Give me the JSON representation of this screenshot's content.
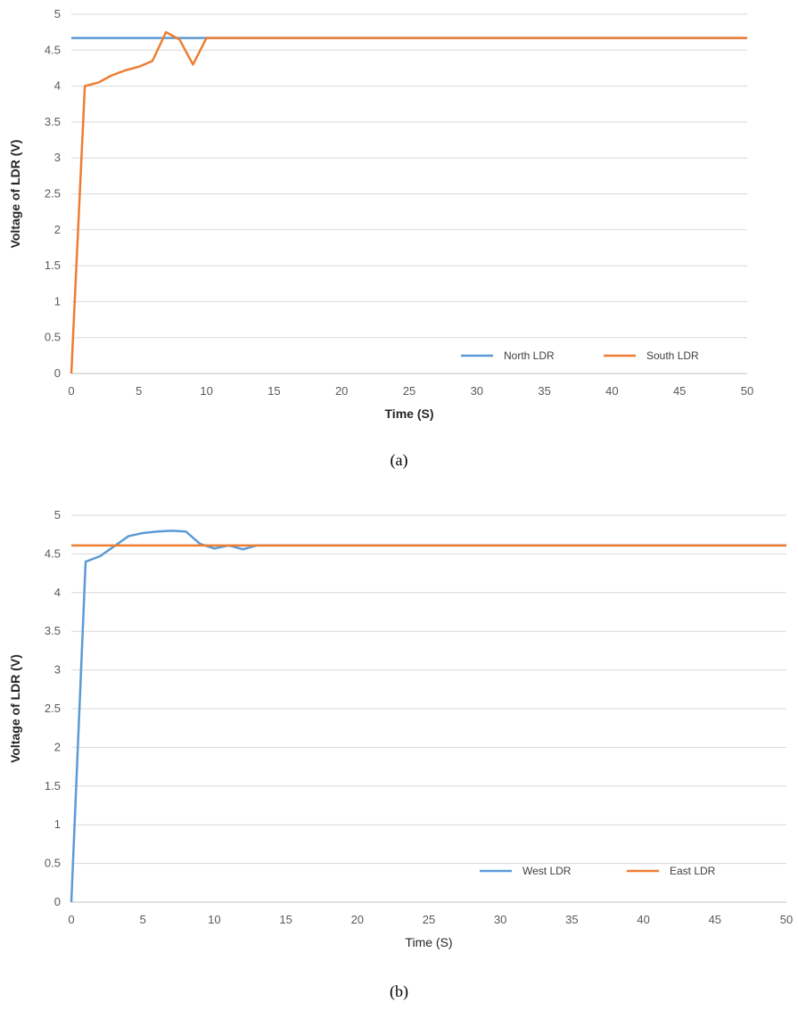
{
  "chart_data": [
    {
      "type": "line",
      "caption": "(a)",
      "xlabel": "Time (S)",
      "ylabel": "Voltage of LDR (V)",
      "xlim": [
        0,
        50
      ],
      "ylim": [
        0,
        5
      ],
      "xticks": [
        "0",
        "5",
        "10",
        "15",
        "20",
        "25",
        "30",
        "35",
        "40",
        "45",
        "50"
      ],
      "yticks": [
        "0",
        "0.5",
        "1",
        "1.5",
        "2",
        "2.5",
        "3",
        "3.5",
        "4",
        "4.5",
        "5"
      ],
      "grid": true,
      "legend_position": "bottom-right",
      "series": [
        {
          "name": "North LDR",
          "color": "#5b9bd5",
          "x": [
            0,
            50
          ],
          "y": [
            4.67,
            4.67
          ]
        },
        {
          "name": "South LDR",
          "color": "#ed7d31",
          "x": [
            0,
            1,
            2,
            3,
            4,
            5,
            6,
            7,
            8,
            9,
            10,
            11,
            15,
            20,
            25,
            30,
            35,
            40,
            45,
            50
          ],
          "y": [
            0,
            4.0,
            4.05,
            4.15,
            4.22,
            4.27,
            4.35,
            4.75,
            4.65,
            4.3,
            4.67,
            4.67,
            4.67,
            4.67,
            4.67,
            4.67,
            4.67,
            4.67,
            4.67,
            4.67
          ]
        }
      ]
    },
    {
      "type": "line",
      "caption": "(b)",
      "xlabel": "Time (S)",
      "ylabel": "Voltage of LDR (V)",
      "xlim": [
        0,
        50
      ],
      "ylim": [
        0,
        5
      ],
      "xticks": [
        "0",
        "5",
        "10",
        "15",
        "20",
        "25",
        "30",
        "35",
        "40",
        "45",
        "50"
      ],
      "yticks": [
        "0",
        "0.5",
        "1",
        "1.5",
        "2",
        "2.5",
        "3",
        "3.5",
        "4",
        "4.5",
        "5"
      ],
      "grid": true,
      "legend_position": "bottom-right",
      "series": [
        {
          "name": "West LDR",
          "color": "#5b9bd5",
          "x": [
            0,
            1,
            2,
            3,
            4,
            5,
            6,
            7,
            8,
            9,
            10,
            11,
            12,
            13,
            15,
            20,
            25,
            30,
            35,
            40,
            45,
            50
          ],
          "y": [
            0,
            4.4,
            4.47,
            4.6,
            4.73,
            4.77,
            4.79,
            4.8,
            4.79,
            4.63,
            4.57,
            4.61,
            4.56,
            4.61,
            4.61,
            4.61,
            4.61,
            4.61,
            4.61,
            4.61,
            4.61,
            4.61
          ]
        },
        {
          "name": "East LDR",
          "color": "#ed7d31",
          "x": [
            0,
            50
          ],
          "y": [
            4.61,
            4.61
          ]
        }
      ]
    }
  ]
}
